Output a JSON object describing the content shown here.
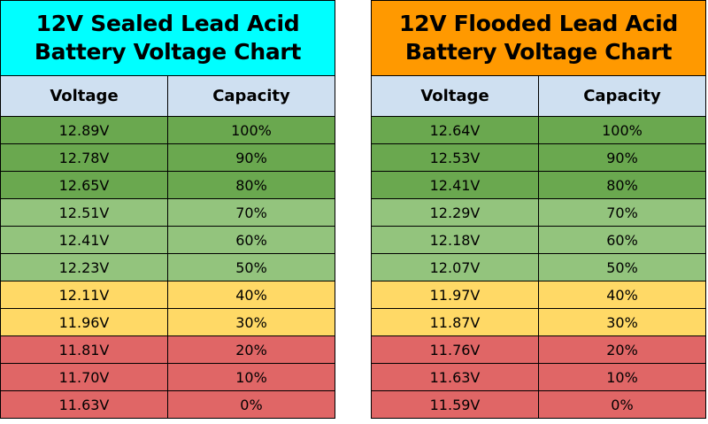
{
  "chart_data": [
    {
      "type": "table",
      "title_lines": [
        "12V Sealed Lead Acid",
        "Battery Voltage Chart"
      ],
      "header_color": "#00ffff",
      "columns": [
        "Voltage",
        "Capacity"
      ],
      "rows": [
        {
          "voltage": "12.89V",
          "capacity": "100%",
          "band": "dark"
        },
        {
          "voltage": "12.78V",
          "capacity": "90%",
          "band": "dark"
        },
        {
          "voltage": "12.65V",
          "capacity": "80%",
          "band": "dark"
        },
        {
          "voltage": "12.51V",
          "capacity": "70%",
          "band": "light"
        },
        {
          "voltage": "12.41V",
          "capacity": "60%",
          "band": "light"
        },
        {
          "voltage": "12.23V",
          "capacity": "50%",
          "band": "light"
        },
        {
          "voltage": "12.11V",
          "capacity": "40%",
          "band": "yellow"
        },
        {
          "voltage": "11.96V",
          "capacity": "30%",
          "band": "yellow"
        },
        {
          "voltage": "11.81V",
          "capacity": "20%",
          "band": "red"
        },
        {
          "voltage": "11.70V",
          "capacity": "10%",
          "band": "red"
        },
        {
          "voltage": "11.63V",
          "capacity": "0%",
          "band": "red"
        }
      ]
    },
    {
      "type": "table",
      "title_lines": [
        "12V Flooded Lead Acid",
        "Battery Voltage Chart"
      ],
      "header_color": "#ff9900",
      "columns": [
        "Voltage",
        "Capacity"
      ],
      "rows": [
        {
          "voltage": "12.64V",
          "capacity": "100%",
          "band": "dark"
        },
        {
          "voltage": "12.53V",
          "capacity": "90%",
          "band": "dark"
        },
        {
          "voltage": "12.41V",
          "capacity": "80%",
          "band": "dark"
        },
        {
          "voltage": "12.29V",
          "capacity": "70%",
          "band": "light"
        },
        {
          "voltage": "12.18V",
          "capacity": "60%",
          "band": "light"
        },
        {
          "voltage": "12.07V",
          "capacity": "50%",
          "band": "light"
        },
        {
          "voltage": "11.97V",
          "capacity": "40%",
          "band": "yellow"
        },
        {
          "voltage": "11.87V",
          "capacity": "30%",
          "band": "yellow"
        },
        {
          "voltage": "11.76V",
          "capacity": "20%",
          "band": "red"
        },
        {
          "voltage": "11.63V",
          "capacity": "10%",
          "band": "red"
        },
        {
          "voltage": "11.59V",
          "capacity": "0%",
          "band": "red"
        }
      ]
    }
  ],
  "colors": {
    "dark": "#6aa84f",
    "light": "#93c47d",
    "yellow": "#ffd966",
    "red": "#e06666",
    "column_header": "#cfe0f1"
  }
}
